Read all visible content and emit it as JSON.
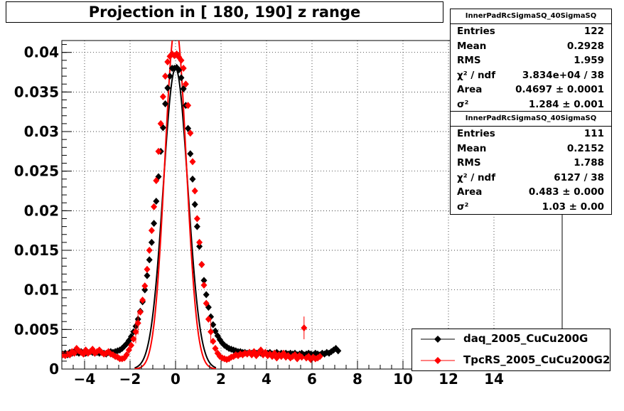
{
  "title": "Projection in [ 180, 190] z range",
  "stats": [
    {
      "header": "InnerPadRcSigmaSQ_40SigmaSQ",
      "rows": [
        {
          "k": "Entries",
          "v": "122"
        },
        {
          "k": "Mean",
          "v": "0.2928"
        },
        {
          "k": "RMS",
          "v": "1.959"
        },
        {
          "k": "χ² / ndf",
          "v": "3.834e+04 / 38"
        },
        {
          "k": "Area",
          "v": "0.4697 ± 0.0001"
        },
        {
          "k": "σ²",
          "v": "1.284 ± 0.001"
        }
      ]
    },
    {
      "header": "InnerPadRcSigmaSQ_40SigmaSQ",
      "rows": [
        {
          "k": "Entries",
          "v": "111"
        },
        {
          "k": "Mean",
          "v": "0.2152"
        },
        {
          "k": "RMS",
          "v": "1.788"
        },
        {
          "k": "χ² / ndf",
          "v": "6127 / 38"
        },
        {
          "k": "Area",
          "v": "0.483 ± 0.000"
        },
        {
          "k": "σ²",
          "v": "1.03 ± 0.00"
        }
      ]
    }
  ],
  "legend": [
    {
      "label": "daq_2005_CuCu200G",
      "color": "#000000"
    },
    {
      "label": "TpcRS_2005_CuCu200G2",
      "color": "#ff0000"
    }
  ],
  "colors": {
    "series_black": "#000000",
    "series_red": "#ff0000"
  },
  "chart_data": {
    "type": "scatter",
    "title": "Projection in [ 180, 190] z range",
    "xlabel": "",
    "ylabel": "",
    "xlim": [
      -5,
      17
    ],
    "ylim": [
      0,
      0.0415
    ],
    "grid": true,
    "x_ticks": [
      "−4",
      "−2",
      "0",
      "2",
      "4",
      "6",
      "8",
      "10",
      "12",
      "14"
    ],
    "y_ticks": [
      "0",
      "0.005",
      "0.01",
      "0.015",
      "0.02",
      "0.025",
      "0.03",
      "0.035",
      "0.04"
    ],
    "series": [
      {
        "name": "daq_2005_CuCu200G",
        "color": "#000000",
        "fit": {
          "mean": 0.0,
          "sigma": 0.54,
          "amp": 0.038
        },
        "points": [
          [
            -4.95,
            0.0019
          ],
          [
            -4.85,
            0.002
          ],
          [
            -4.75,
            0.0018
          ],
          [
            -4.65,
            0.0021
          ],
          [
            -4.55,
            0.002
          ],
          [
            -4.45,
            0.0022
          ],
          [
            -4.35,
            0.0021
          ],
          [
            -4.25,
            0.002
          ],
          [
            -4.15,
            0.0022
          ],
          [
            -4.05,
            0.0021
          ],
          [
            -3.95,
            0.002
          ],
          [
            -3.85,
            0.0021
          ],
          [
            -3.75,
            0.0022
          ],
          [
            -3.65,
            0.0021
          ],
          [
            -3.55,
            0.002
          ],
          [
            -3.45,
            0.0021
          ],
          [
            -3.35,
            0.002
          ],
          [
            -3.25,
            0.0021
          ],
          [
            -3.15,
            0.002
          ],
          [
            -3.05,
            0.0019
          ],
          [
            -2.95,
            0.0021
          ],
          [
            -2.85,
            0.0022
          ],
          [
            -2.75,
            0.0021
          ],
          [
            -2.65,
            0.0022
          ],
          [
            -2.55,
            0.0023
          ],
          [
            -2.45,
            0.0024
          ],
          [
            -2.35,
            0.0026
          ],
          [
            -2.25,
            0.0029
          ],
          [
            -2.15,
            0.0032
          ],
          [
            -2.05,
            0.0036
          ],
          [
            -1.95,
            0.0041
          ],
          [
            -1.85,
            0.0047
          ],
          [
            -1.75,
            0.0054
          ],
          [
            -1.65,
            0.0063
          ],
          [
            -1.55,
            0.0073
          ],
          [
            -1.45,
            0.0085
          ],
          [
            -1.35,
            0.01
          ],
          [
            -1.25,
            0.0118
          ],
          [
            -1.15,
            0.0138
          ],
          [
            -1.05,
            0.016
          ],
          [
            -0.95,
            0.0184
          ],
          [
            -0.85,
            0.0212
          ],
          [
            -0.75,
            0.0243
          ],
          [
            -0.65,
            0.0275
          ],
          [
            -0.55,
            0.0305
          ],
          [
            -0.45,
            0.0335
          ],
          [
            -0.35,
            0.0355
          ],
          [
            -0.25,
            0.037
          ],
          [
            -0.15,
            0.038
          ],
          [
            -0.05,
            0.038
          ],
          [
            0.05,
            0.0381
          ],
          [
            0.15,
            0.0378
          ],
          [
            0.25,
            0.0368
          ],
          [
            0.35,
            0.0354
          ],
          [
            0.45,
            0.0333
          ],
          [
            0.55,
            0.0304
          ],
          [
            0.65,
            0.0272
          ],
          [
            0.75,
            0.024
          ],
          [
            0.85,
            0.0208
          ],
          [
            0.95,
            0.018
          ],
          [
            1.05,
            0.0155
          ],
          [
            1.15,
            0.0132
          ],
          [
            1.25,
            0.0112
          ],
          [
            1.35,
            0.0094
          ],
          [
            1.45,
            0.0078
          ],
          [
            1.55,
            0.0066
          ],
          [
            1.65,
            0.0056
          ],
          [
            1.75,
            0.0048
          ],
          [
            1.85,
            0.0042
          ],
          [
            1.95,
            0.0037
          ],
          [
            2.05,
            0.0033
          ],
          [
            2.15,
            0.003
          ],
          [
            2.25,
            0.0028
          ],
          [
            2.35,
            0.0026
          ],
          [
            2.45,
            0.0025
          ],
          [
            2.55,
            0.0024
          ],
          [
            2.65,
            0.0023
          ],
          [
            2.75,
            0.0022
          ],
          [
            2.85,
            0.0022
          ],
          [
            2.95,
            0.0021
          ],
          [
            3.05,
            0.0021
          ],
          [
            3.15,
            0.002
          ],
          [
            3.25,
            0.0021
          ],
          [
            3.35,
            0.002
          ],
          [
            3.45,
            0.0021
          ],
          [
            3.55,
            0.002
          ],
          [
            3.65,
            0.0021
          ],
          [
            3.75,
            0.002
          ],
          [
            3.85,
            0.0019
          ],
          [
            3.95,
            0.0021
          ],
          [
            4.05,
            0.002
          ],
          [
            4.15,
            0.0021
          ],
          [
            4.25,
            0.0019
          ],
          [
            4.35,
            0.002
          ],
          [
            4.45,
            0.0021
          ],
          [
            4.55,
            0.0019
          ],
          [
            4.65,
            0.002
          ],
          [
            4.75,
            0.0019
          ],
          [
            4.85,
            0.002
          ],
          [
            4.95,
            0.0019
          ],
          [
            5.05,
            0.002
          ],
          [
            5.15,
            0.0019
          ],
          [
            5.25,
            0.002
          ],
          [
            5.35,
            0.0018
          ],
          [
            5.45,
            0.0019
          ],
          [
            5.55,
            0.002
          ],
          [
            5.65,
            0.0018
          ],
          [
            5.75,
            0.0019
          ],
          [
            5.85,
            0.002
          ],
          [
            5.95,
            0.0019
          ],
          [
            6.05,
            0.0018
          ],
          [
            6.15,
            0.002
          ],
          [
            6.25,
            0.0019
          ],
          [
            6.35,
            0.0018
          ],
          [
            6.45,
            0.002
          ],
          [
            6.55,
            0.0019
          ],
          [
            6.65,
            0.0021
          ],
          [
            6.75,
            0.002
          ],
          [
            6.85,
            0.0022
          ],
          [
            6.95,
            0.0024
          ],
          [
            7.05,
            0.0026
          ],
          [
            7.15,
            0.0023
          ]
        ]
      },
      {
        "name": "TpcRS_2005_CuCu200G2",
        "color": "#ff0000",
        "fit": {
          "mean": 0.0,
          "sigma": 0.47,
          "amp": 0.0435
        },
        "points": [
          [
            -4.95,
            0.0018
          ],
          [
            -4.85,
            0.0017
          ],
          [
            -4.75,
            0.0019
          ],
          [
            -4.65,
            0.0018
          ],
          [
            -4.55,
            0.0022
          ],
          [
            -4.45,
            0.002
          ],
          [
            -4.35,
            0.0026
          ],
          [
            -4.25,
            0.0023
          ],
          [
            -4.15,
            0.0021
          ],
          [
            -4.05,
            0.0019
          ],
          [
            -3.95,
            0.0024
          ],
          [
            -3.85,
            0.002
          ],
          [
            -3.75,
            0.0022
          ],
          [
            -3.65,
            0.0025
          ],
          [
            -3.55,
            0.002
          ],
          [
            -3.45,
            0.0022
          ],
          [
            -3.35,
            0.0024
          ],
          [
            -3.25,
            0.0021
          ],
          [
            -3.15,
            0.0019
          ],
          [
            -3.05,
            0.002
          ],
          [
            -2.95,
            0.0022
          ],
          [
            -2.85,
            0.0019
          ],
          [
            -2.75,
            0.0018
          ],
          [
            -2.65,
            0.0016
          ],
          [
            -2.55,
            0.0015
          ],
          [
            -2.45,
            0.0013
          ],
          [
            -2.35,
            0.0013
          ],
          [
            -2.25,
            0.0014
          ],
          [
            -2.15,
            0.0018
          ],
          [
            -2.05,
            0.0024
          ],
          [
            -1.95,
            0.003
          ],
          [
            -1.85,
            0.0038
          ],
          [
            -1.75,
            0.0047
          ],
          [
            -1.65,
            0.0058
          ],
          [
            -1.55,
            0.0072
          ],
          [
            -1.45,
            0.0087
          ],
          [
            -1.35,
            0.0105
          ],
          [
            -1.25,
            0.0126
          ],
          [
            -1.15,
            0.015
          ],
          [
            -1.05,
            0.0175
          ],
          [
            -0.95,
            0.0205
          ],
          [
            -0.85,
            0.0238
          ],
          [
            -0.75,
            0.0275
          ],
          [
            -0.65,
            0.031
          ],
          [
            -0.55,
            0.0344
          ],
          [
            -0.45,
            0.037
          ],
          [
            -0.35,
            0.0388
          ],
          [
            -0.25,
            0.0395
          ],
          [
            -0.15,
            0.0398
          ],
          [
            -0.05,
            0.0396
          ],
          [
            0.05,
            0.0398
          ],
          [
            0.15,
            0.0394
          ],
          [
            0.25,
            0.039
          ],
          [
            0.35,
            0.038
          ],
          [
            0.45,
            0.036
          ],
          [
            0.55,
            0.0333
          ],
          [
            0.65,
            0.0298
          ],
          [
            0.75,
            0.0262
          ],
          [
            0.85,
            0.0225
          ],
          [
            0.95,
            0.019
          ],
          [
            1.05,
            0.016
          ],
          [
            1.15,
            0.0132
          ],
          [
            1.25,
            0.0106
          ],
          [
            1.35,
            0.0083
          ],
          [
            1.45,
            0.0063
          ],
          [
            1.55,
            0.0047
          ],
          [
            1.65,
            0.0035
          ],
          [
            1.75,
            0.0026
          ],
          [
            1.85,
            0.002
          ],
          [
            1.95,
            0.0016
          ],
          [
            2.05,
            0.0014
          ],
          [
            2.15,
            0.0013
          ],
          [
            2.25,
            0.0012
          ],
          [
            2.35,
            0.0013
          ],
          [
            2.45,
            0.0015
          ],
          [
            2.55,
            0.0016
          ],
          [
            2.65,
            0.0018
          ],
          [
            2.75,
            0.0017
          ],
          [
            2.85,
            0.0019
          ],
          [
            2.95,
            0.0018
          ],
          [
            3.05,
            0.002
          ],
          [
            3.15,
            0.0019
          ],
          [
            3.25,
            0.0021
          ],
          [
            3.35,
            0.0018
          ],
          [
            3.45,
            0.0022
          ],
          [
            3.55,
            0.0017
          ],
          [
            3.65,
            0.002
          ],
          [
            3.75,
            0.0024
          ],
          [
            3.85,
            0.0018
          ],
          [
            3.95,
            0.0021
          ],
          [
            4.05,
            0.0017
          ],
          [
            4.15,
            0.0019
          ],
          [
            4.25,
            0.0016
          ],
          [
            4.35,
            0.002
          ],
          [
            4.45,
            0.0014
          ],
          [
            4.55,
            0.0018
          ],
          [
            4.65,
            0.0016
          ],
          [
            4.75,
            0.002
          ],
          [
            4.85,
            0.0015
          ],
          [
            4.95,
            0.0017
          ],
          [
            5.05,
            0.0014
          ],
          [
            5.15,
            0.0016
          ],
          [
            5.25,
            0.0018
          ],
          [
            5.35,
            0.0013
          ],
          [
            5.45,
            0.0017
          ],
          [
            5.55,
            0.0015
          ],
          [
            5.65,
            0.0052
          ],
          [
            5.75,
            0.0014
          ],
          [
            5.85,
            0.0016
          ],
          [
            5.95,
            0.0012
          ],
          [
            6.05,
            0.0015
          ],
          [
            6.15,
            0.0013
          ],
          [
            6.25,
            0.0014
          ],
          [
            6.35,
            0.0016
          ]
        ]
      }
    ]
  }
}
